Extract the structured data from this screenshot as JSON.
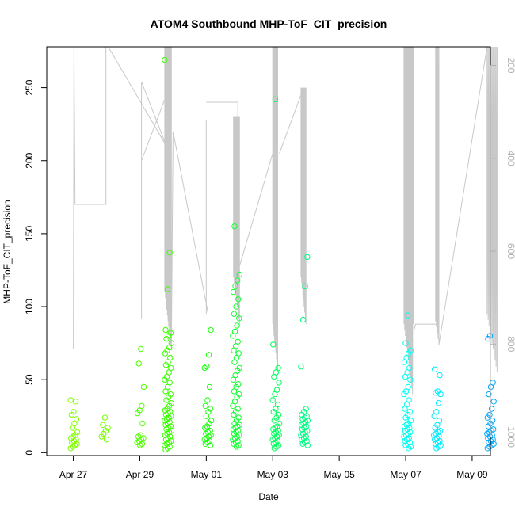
{
  "chart_data": {
    "type": "scatter",
    "title": "ATOM4 Southbound MHP-ToF_CIT_precision",
    "xlabel": "Date",
    "ylabel": "MHP-ToF_CIT_precision",
    "x_unit": "days since Apr 27",
    "xlim": [
      -0.8,
      12.55
    ],
    "ylim": [
      -2,
      278
    ],
    "x_ticks": [
      {
        "value": 0,
        "label": "Apr 27"
      },
      {
        "value": 2,
        "label": "Apr 29"
      },
      {
        "value": 4,
        "label": "May 01"
      },
      {
        "value": 6,
        "label": "May 03"
      },
      {
        "value": 8,
        "label": "May 05"
      },
      {
        "value": 10,
        "label": "May 07"
      },
      {
        "value": 12,
        "label": "May 09"
      }
    ],
    "y_ticks": [
      0,
      50,
      100,
      150,
      200,
      250
    ],
    "y2_ticks": [
      200,
      400,
      600,
      800,
      1000
    ],
    "y2_range": [
      1040,
      160
    ],
    "y2_note": "secondary axis (grey trace, inverted)",
    "grey_trace_color": "#c8c8c8",
    "clusters": [
      {
        "x": 0.02,
        "color": "#7fff00",
        "values": [
          3,
          4,
          5,
          6,
          7,
          8,
          9,
          10,
          11,
          12,
          14,
          17,
          20,
          23,
          26,
          28,
          35,
          36
        ]
      },
      {
        "x": 0.95,
        "color": "#77ff00",
        "values": [
          9,
          11,
          13,
          15,
          17,
          19,
          24
        ]
      },
      {
        "x": 2.02,
        "color": "#50ff00",
        "values": [
          5,
          6,
          7,
          8,
          9,
          10,
          11,
          12,
          20,
          27,
          29,
          32,
          45,
          61,
          71
        ]
      },
      {
        "x": 2.85,
        "color": "#3aff00",
        "values": [
          2,
          3,
          4,
          5,
          6,
          7,
          8,
          9,
          10,
          11,
          12,
          13,
          14,
          15,
          16,
          17,
          18,
          19,
          20,
          21,
          22,
          23,
          24,
          25,
          26,
          27,
          28,
          29,
          30,
          32,
          34,
          36,
          38,
          40,
          42,
          45,
          48,
          50,
          52,
          55,
          58,
          60,
          62,
          65,
          68,
          70,
          72,
          75,
          78,
          80,
          82,
          84,
          112,
          137,
          269
        ]
      },
      {
        "x": 4.05,
        "color": "#1eff12",
        "values": [
          5,
          6,
          7,
          8,
          9,
          10,
          11,
          12,
          13,
          14,
          15,
          17,
          18,
          20,
          22,
          25,
          28,
          30,
          32,
          36,
          45,
          58,
          59,
          67,
          84
        ]
      },
      {
        "x": 4.9,
        "color": "#12ff30",
        "values": [
          4,
          5,
          6,
          7,
          8,
          9,
          10,
          11,
          12,
          13,
          14,
          15,
          16,
          17,
          18,
          19,
          20,
          22,
          24,
          26,
          28,
          30,
          32,
          35,
          38,
          40,
          42,
          45,
          47,
          50,
          53,
          56,
          58,
          62,
          65,
          68,
          70,
          73,
          76,
          80,
          83,
          87,
          92,
          95,
          100,
          105,
          110,
          114,
          118,
          122,
          155
        ]
      },
      {
        "x": 6.1,
        "color": "#00ff5a",
        "values": [
          3,
          4,
          5,
          6,
          7,
          8,
          9,
          10,
          11,
          12,
          13,
          14,
          15,
          16,
          17,
          18,
          20,
          22,
          24,
          26,
          28,
          30,
          33,
          36,
          40,
          43,
          48,
          52,
          55,
          58,
          74,
          242
        ]
      },
      {
        "x": 6.95,
        "color": "#00ff82",
        "values": [
          5,
          6,
          7,
          8,
          9,
          10,
          11,
          12,
          13,
          14,
          15,
          16,
          17,
          18,
          19,
          20,
          21,
          22,
          23,
          24,
          25,
          26,
          28,
          30,
          59,
          91,
          114,
          134
        ]
      },
      {
        "x": 10.05,
        "color": "#00fff2",
        "values": [
          3,
          4,
          5,
          6,
          7,
          8,
          9,
          10,
          11,
          12,
          13,
          14,
          15,
          16,
          17,
          18,
          19,
          20,
          22,
          24,
          26,
          28,
          30,
          33,
          36,
          40,
          42,
          45,
          50,
          52,
          55,
          58,
          62,
          65,
          68,
          70,
          75,
          94
        ]
      },
      {
        "x": 10.95,
        "color": "#00ecff",
        "values": [
          3,
          4,
          5,
          6,
          7,
          8,
          9,
          10,
          11,
          12,
          13,
          14,
          15,
          17,
          19,
          22,
          25,
          28,
          34,
          40,
          41,
          42,
          53,
          57
        ]
      },
      {
        "x": 12.55,
        "color": "#00a8ff",
        "values": [
          3,
          4,
          5,
          6,
          7,
          8,
          9,
          10,
          11,
          12,
          13,
          14,
          15,
          16,
          18,
          20,
          22,
          24,
          26,
          30,
          35,
          40,
          45,
          48,
          78,
          80
        ]
      }
    ]
  }
}
